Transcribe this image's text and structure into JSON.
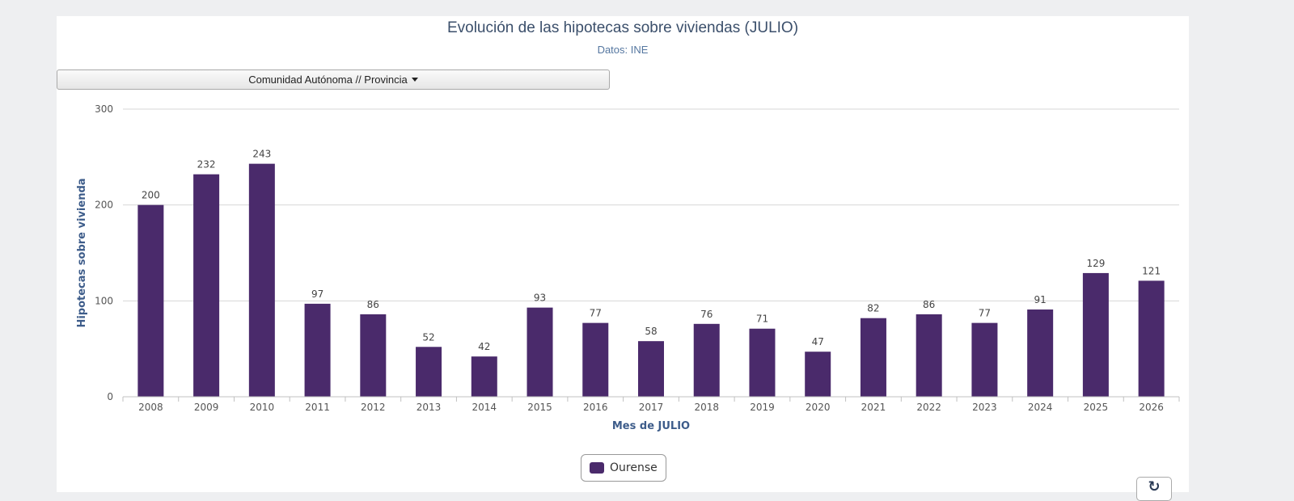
{
  "header": {
    "title": "Evolución de las hipotecas sobre viviendas (JULIO)",
    "subtitle": "Datos: INE"
  },
  "selector": {
    "label": "Comunidad Autónoma // Provincia"
  },
  "legend": {
    "label": "Ourense"
  },
  "colors": {
    "bar": "#4a2a6b",
    "grid": "#d7d7d7",
    "axis_title": "#3d5c8a",
    "tick": "#555555"
  },
  "icons": {
    "refresh": "refresh-icon"
  },
  "chart_data": {
    "type": "bar",
    "title": "Evolución de las hipotecas sobre viviendas (JULIO)",
    "subtitle": "Datos: INE",
    "xlabel": "Mes de JULIO",
    "ylabel": "Hipotecas sobre vivienda",
    "ylim": [
      0,
      300
    ],
    "yticks": [
      0,
      100,
      200,
      300
    ],
    "grid": true,
    "legend_position": "bottom",
    "categories": [
      "2008",
      "2009",
      "2010",
      "2011",
      "2012",
      "2013",
      "2014",
      "2015",
      "2016",
      "2017",
      "2018",
      "2019",
      "2020",
      "2021",
      "2022",
      "2023",
      "2024",
      "2025",
      "2026"
    ],
    "series": [
      {
        "name": "Ourense",
        "values": [
          200,
          232,
          243,
          97,
          86,
          52,
          42,
          93,
          77,
          58,
          76,
          71,
          47,
          82,
          86,
          77,
          91,
          129,
          121
        ]
      }
    ]
  }
}
